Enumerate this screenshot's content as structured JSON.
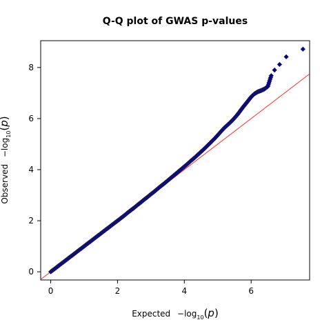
{
  "chart_data": {
    "type": "scatter",
    "title": "Q-Q plot of GWAS p-values",
    "xlabel": {
      "prefix": "Expected",
      "minus": "−log",
      "sub": "10",
      "open": "(",
      "var": "p",
      "close": ")"
    },
    "ylabel": {
      "prefix": "Observed",
      "minus": "−log",
      "sub": "10",
      "open": "(",
      "var": "p",
      "close": ")"
    },
    "xlim": [
      -0.3,
      7.75
    ],
    "ylim": [
      -0.32,
      9.05
    ],
    "x_ticks": [
      0,
      2,
      4,
      6
    ],
    "y_ticks": [
      0,
      2,
      4,
      6,
      8
    ],
    "x_tick_labels": [
      "0",
      "2",
      "4",
      "6"
    ],
    "y_tick_labels": [
      "0",
      "2",
      "4",
      "6",
      "8"
    ],
    "grid": false,
    "reference_line": {
      "slope": 1,
      "intercept": 0,
      "color": "#ff2a2a"
    },
    "marker_color": "#00008b",
    "marker_edge": "#1a1a5e",
    "series": [
      {
        "points": [
          [
            0.0,
            0.0
          ],
          [
            0.1,
            0.1
          ],
          [
            0.2,
            0.2
          ],
          [
            0.3,
            0.3
          ],
          [
            0.4,
            0.4
          ],
          [
            0.5,
            0.5
          ],
          [
            0.6,
            0.6
          ],
          [
            0.7,
            0.7
          ],
          [
            0.8,
            0.8
          ],
          [
            0.9,
            0.9
          ],
          [
            1.0,
            1.0
          ],
          [
            1.1,
            1.1
          ],
          [
            1.2,
            1.2
          ],
          [
            1.3,
            1.3
          ],
          [
            1.4,
            1.4
          ],
          [
            1.5,
            1.5
          ],
          [
            1.6,
            1.6
          ],
          [
            1.7,
            1.7
          ],
          [
            1.8,
            1.8
          ],
          [
            1.9,
            1.9
          ],
          [
            2.0,
            2.0
          ],
          [
            2.1,
            2.1
          ],
          [
            2.2,
            2.2
          ],
          [
            2.3,
            2.31
          ],
          [
            2.4,
            2.41
          ],
          [
            2.5,
            2.51
          ],
          [
            2.6,
            2.62
          ],
          [
            2.7,
            2.72
          ],
          [
            2.8,
            2.83
          ],
          [
            2.9,
            2.93
          ],
          [
            3.0,
            3.04
          ],
          [
            3.1,
            3.14
          ],
          [
            3.2,
            3.25
          ],
          [
            3.3,
            3.36
          ],
          [
            3.4,
            3.46
          ],
          [
            3.5,
            3.57
          ],
          [
            3.6,
            3.68
          ],
          [
            3.7,
            3.79
          ],
          [
            3.8,
            3.9
          ],
          [
            3.9,
            4.01
          ],
          [
            4.0,
            4.12
          ],
          [
            4.1,
            4.23
          ],
          [
            4.2,
            4.35
          ],
          [
            4.3,
            4.46
          ],
          [
            4.4,
            4.58
          ],
          [
            4.5,
            4.7
          ],
          [
            4.6,
            4.82
          ],
          [
            4.7,
            4.95
          ],
          [
            4.8,
            5.08
          ],
          [
            4.9,
            5.21
          ],
          [
            5.0,
            5.35
          ],
          [
            5.1,
            5.5
          ],
          [
            5.2,
            5.64
          ],
          [
            5.3,
            5.76
          ],
          [
            5.4,
            5.88
          ],
          [
            5.5,
            6.02
          ],
          [
            5.6,
            6.17
          ],
          [
            5.7,
            6.35
          ],
          [
            5.8,
            6.52
          ],
          [
            5.9,
            6.68
          ],
          [
            6.0,
            6.85
          ],
          [
            6.1,
            6.97
          ],
          [
            6.2,
            7.05
          ],
          [
            6.3,
            7.1
          ],
          [
            6.4,
            7.16
          ],
          [
            6.5,
            7.26
          ],
          [
            6.6,
            7.68
          ],
          [
            6.7,
            7.9
          ],
          [
            6.85,
            8.12
          ],
          [
            7.05,
            8.42
          ],
          [
            7.55,
            8.72
          ]
        ]
      }
    ]
  }
}
